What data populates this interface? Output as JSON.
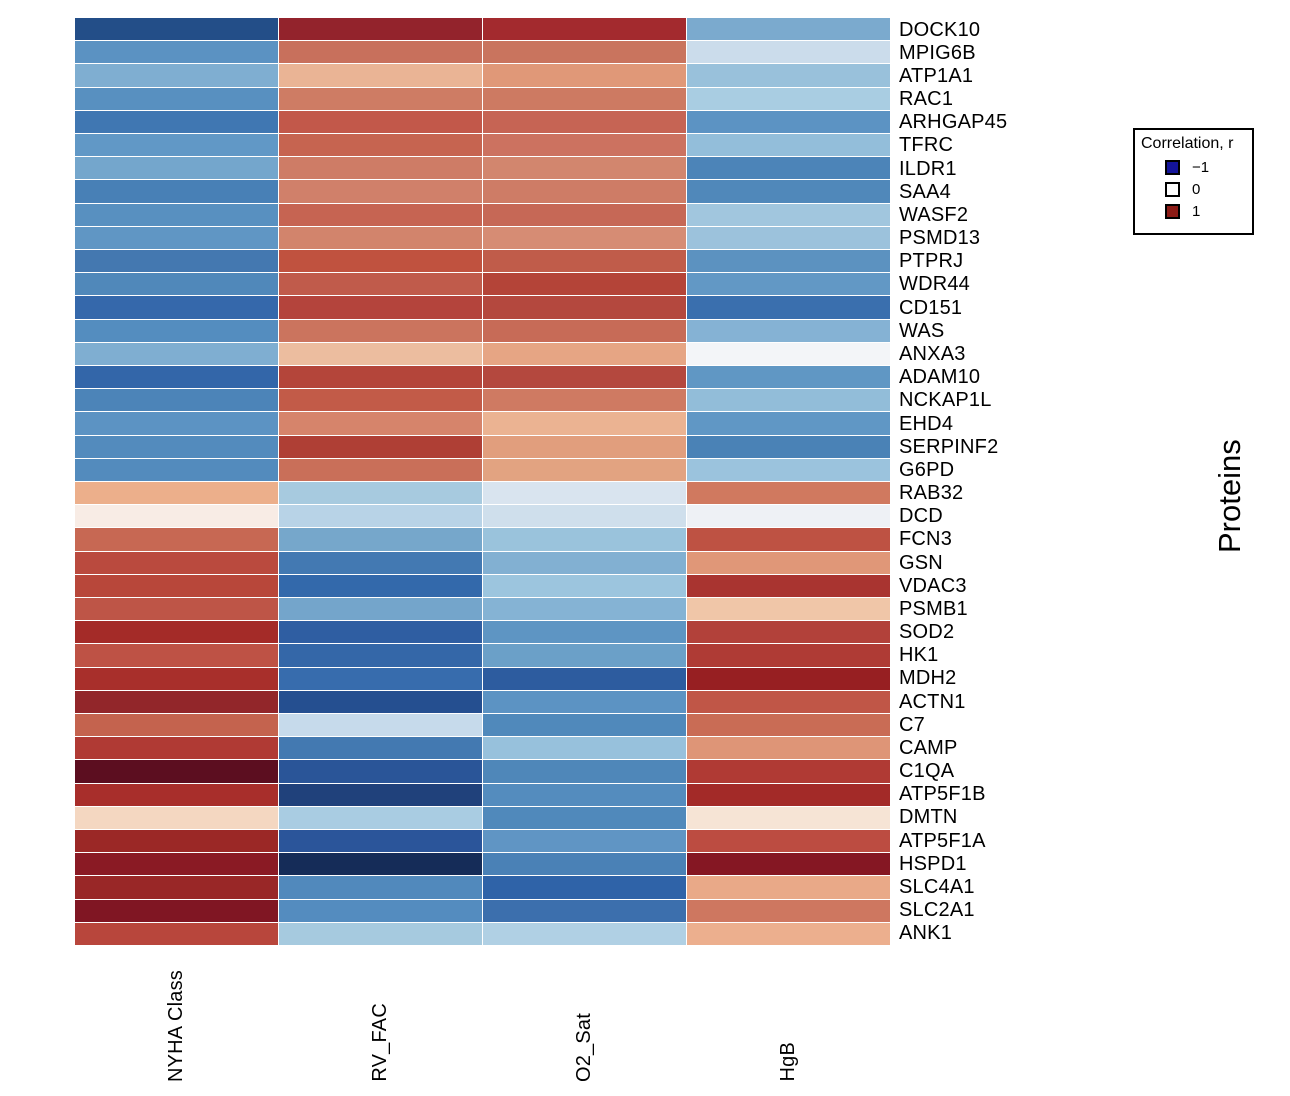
{
  "figure": {
    "background": "#FFFFFF",
    "ylab_right": "Proteins"
  },
  "legend": {
    "title": "Correlation, r",
    "entries": [
      {
        "label": "−1",
        "color": "#14149A"
      },
      {
        "label": "0",
        "color": "#FFFFFF"
      },
      {
        "label": "1",
        "color": "#8C1B16"
      }
    ]
  },
  "chart_data": {
    "type": "heatmap",
    "x_categories": [
      "NYHA Class",
      "RV_FAC",
      "O2_Sat",
      "HgB"
    ],
    "y_axis_label": "Proteins",
    "colorscale": {
      "min": -1,
      "mid": 0,
      "max": 1,
      "min_color": "#14149A",
      "mid_color": "#FFFFFF",
      "max_color": "#8C1B16"
    },
    "rows": [
      {
        "protein": "DOCK10",
        "r": [
          -0.8,
          0.85,
          0.8,
          -0.35
        ],
        "colors": [
          "#234E88",
          "#93232C",
          "#A32A2E",
          "#7BAACE"
        ]
      },
      {
        "protein": "MPIG6B",
        "r": [
          -0.5,
          0.5,
          0.48,
          -0.2
        ],
        "colors": [
          "#5B92C2",
          "#C8705C",
          "#C9745E",
          "#CBDCEB"
        ]
      },
      {
        "protein": "ATP1A1",
        "r": [
          -0.35,
          0.3,
          0.4,
          -0.3
        ],
        "colors": [
          "#7FAED1",
          "#EAB495",
          "#E09878",
          "#99C1DB"
        ]
      },
      {
        "protein": "RAC1",
        "r": [
          -0.52,
          0.45,
          0.45,
          -0.27
        ],
        "colors": [
          "#5890C0",
          "#CE7C64",
          "#CD7A62",
          "#A9CDE2"
        ]
      },
      {
        "protein": "ARHGAP45",
        "r": [
          -0.65,
          0.62,
          0.58,
          -0.5
        ],
        "colors": [
          "#4077B2",
          "#C2584A",
          "#C66454",
          "#5C93C3"
        ]
      },
      {
        "protein": "TFRC",
        "r": [
          -0.48,
          0.58,
          0.5,
          -0.32
        ],
        "colors": [
          "#6198C6",
          "#C66450",
          "#CC7260",
          "#93BEDA"
        ]
      },
      {
        "protein": "ILDR1",
        "r": [
          -0.4,
          0.45,
          0.42,
          -0.6
        ],
        "colors": [
          "#74A6CC",
          "#CE7C66",
          "#D2866E",
          "#4C84B8"
        ]
      },
      {
        "protein": "SAA4",
        "r": [
          -0.62,
          0.44,
          0.45,
          -0.58
        ],
        "colors": [
          "#4880B6",
          "#D0806A",
          "#CE7C66",
          "#5088BA"
        ]
      },
      {
        "protein": "WASF2",
        "r": [
          -0.52,
          0.58,
          0.56,
          -0.28
        ],
        "colors": [
          "#5890C0",
          "#C66452",
          "#C66856",
          "#A1C6DE"
        ]
      },
      {
        "protein": "PSMD13",
        "r": [
          -0.48,
          0.43,
          0.4,
          -0.3
        ],
        "colors": [
          "#6096C4",
          "#D2846C",
          "#D68C74",
          "#9CC2DC"
        ]
      },
      {
        "protein": "PTPRJ",
        "r": [
          -0.63,
          0.65,
          0.6,
          -0.5
        ],
        "colors": [
          "#4478B0",
          "#C0523F",
          "#C05C4A",
          "#5C92C0"
        ]
      },
      {
        "protein": "WDR44",
        "r": [
          -0.58,
          0.6,
          0.7,
          -0.47
        ],
        "colors": [
          "#5088BA",
          "#C05B4B",
          "#B44438",
          "#6298C5"
        ]
      },
      {
        "protein": "CD151",
        "r": [
          -0.72,
          0.72,
          0.7,
          -0.7
        ],
        "colors": [
          "#3568AB",
          "#B4443C",
          "#B4483E",
          "#3A6FAE"
        ]
      },
      {
        "protein": "WAS",
        "r": [
          -0.54,
          0.48,
          0.52,
          -0.37
        ],
        "colors": [
          "#548DBF",
          "#CB745E",
          "#C76B57",
          "#85B2D4"
        ]
      },
      {
        "protein": "ANXA3",
        "r": [
          -0.35,
          0.25,
          0.35,
          -0.02
        ],
        "colors": [
          "#7FAED1",
          "#ECBD9F",
          "#E6A584",
          "#F3F5F8"
        ]
      },
      {
        "protein": "ADAM10",
        "r": [
          -0.73,
          0.7,
          0.7,
          -0.48
        ],
        "colors": [
          "#3366A9",
          "#B4453A",
          "#B4483E",
          "#6097C4"
        ]
      },
      {
        "protein": "NCKAP1L",
        "r": [
          -0.6,
          0.62,
          0.45,
          -0.33
        ],
        "colors": [
          "#4C84B8",
          "#C25B48",
          "#CF7A62",
          "#92BDD9"
        ]
      },
      {
        "protein": "EHD4",
        "r": [
          -0.5,
          0.42,
          0.27,
          -0.48
        ],
        "colors": [
          "#5C93C3",
          "#D6846B",
          "#EBB392",
          "#6097C5"
        ]
      },
      {
        "protein": "SERPINF2",
        "r": [
          -0.55,
          0.68,
          0.35,
          -0.6
        ],
        "colors": [
          "#538BBD",
          "#AF3F35",
          "#E19E7D",
          "#4A82B6"
        ]
      },
      {
        "protein": "G6PD",
        "r": [
          -0.55,
          0.5,
          0.34,
          -0.3
        ],
        "colors": [
          "#538BBD",
          "#C96F59",
          "#E2A381",
          "#9BC3DD"
        ]
      },
      {
        "protein": "RAB32",
        "r": [
          0.25,
          -0.27,
          -0.12,
          0.46
        ],
        "colors": [
          "#ECAF8B",
          "#A7CADF",
          "#D9E4EF",
          "#D0795F"
        ]
      },
      {
        "protein": "DCD",
        "r": [
          0.05,
          -0.22,
          -0.15,
          -0.05
        ],
        "colors": [
          "#F8ECE5",
          "#B8D3E7",
          "#CFDFEC",
          "#EEF1F5"
        ]
      },
      {
        "protein": "FCN3",
        "r": [
          0.55,
          -0.4,
          -0.3,
          0.63
        ],
        "colors": [
          "#C76853",
          "#76A7CB",
          "#9AC3DC",
          "#BE5243"
        ]
      },
      {
        "protein": "GSN",
        "r": [
          0.65,
          -0.63,
          -0.36,
          0.37
        ],
        "colors": [
          "#BA4A3E",
          "#4379B2",
          "#82B0D2",
          "#E09778"
        ]
      },
      {
        "protein": "VDAC3",
        "r": [
          0.66,
          -0.72,
          -0.3,
          0.77
        ],
        "colors": [
          "#B8473A",
          "#3369AB",
          "#9CC5DE",
          "#A93430"
        ]
      },
      {
        "protein": "PSMB1",
        "r": [
          0.62,
          -0.41,
          -0.36,
          0.2
        ],
        "colors": [
          "#BE5547",
          "#74A5CB",
          "#85B3D4",
          "#F0C6A8"
        ]
      },
      {
        "protein": "SOD2",
        "r": [
          0.8,
          -0.78,
          -0.5,
          0.69
        ],
        "colors": [
          "#A42B28",
          "#2F5EA2",
          "#5E95C3",
          "#B2413A"
        ]
      },
      {
        "protein": "HK1",
        "r": [
          0.63,
          -0.72,
          -0.44,
          0.74
        ],
        "colors": [
          "#BE5245",
          "#3467A8",
          "#6BA0C8",
          "#AF3B35"
        ]
      },
      {
        "protein": "MDH2",
        "r": [
          0.78,
          -0.68,
          -0.8,
          0.87
        ],
        "colors": [
          "#A82F2B",
          "#376CAD",
          "#2D5C9F",
          "#971F22"
        ]
      },
      {
        "protein": "ACTN1",
        "r": [
          0.83,
          -0.82,
          -0.5,
          0.6
        ],
        "colors": [
          "#92262A",
          "#254F90",
          "#5C93C3",
          "#C05647"
        ]
      },
      {
        "protein": "C7",
        "r": [
          0.56,
          -0.18,
          -0.58,
          0.52
        ],
        "colors": [
          "#C4634E",
          "#C6DAEB",
          "#5089BB",
          "#C96C55"
        ]
      },
      {
        "protein": "CAMP",
        "r": [
          0.73,
          -0.63,
          -0.32,
          0.39
        ],
        "colors": [
          "#B03A34",
          "#4379B1",
          "#97C1DC",
          "#DE9577"
        ]
      },
      {
        "protein": "C1QA",
        "r": [
          0.98,
          -0.8,
          -0.58,
          0.73
        ],
        "colors": [
          "#5C0E20",
          "#2A5598",
          "#4F87B9",
          "#B03A34"
        ]
      },
      {
        "protein": "ATP5F1B",
        "r": [
          0.77,
          -0.88,
          -0.55,
          0.8
        ],
        "colors": [
          "#A82E2B",
          "#20417B",
          "#548CBE",
          "#A32A28"
        ]
      },
      {
        "protein": "DMTN",
        "r": [
          0.15,
          -0.26,
          -0.58,
          0.08
        ],
        "colors": [
          "#F4D7C1",
          "#A9CCE2",
          "#5089BB",
          "#F6E4D5"
        ]
      },
      {
        "protein": "ATP5F1A",
        "r": [
          0.81,
          -0.79,
          -0.48,
          0.65
        ],
        "colors": [
          "#9B2826",
          "#2B559A",
          "#6095C4",
          "#BC4C41"
        ]
      },
      {
        "protein": "HSPD1",
        "r": [
          0.88,
          -0.97,
          -0.6,
          0.9
        ],
        "colors": [
          "#8A1A24",
          "#152C58",
          "#4A81B6",
          "#851723"
        ]
      },
      {
        "protein": "SLC4A1",
        "r": [
          0.79,
          -0.56,
          -0.77,
          0.28
        ],
        "colors": [
          "#992727",
          "#5189BC",
          "#2F63A8",
          "#E9A988"
        ]
      },
      {
        "protein": "SLC2A1",
        "r": [
          0.91,
          -0.54,
          -0.67,
          0.48
        ],
        "colors": [
          "#801623",
          "#548CBF",
          "#3C6FAD",
          "#CE7760"
        ]
      },
      {
        "protein": "ANK1",
        "r": [
          0.66,
          -0.27,
          -0.25,
          0.24
        ],
        "colors": [
          "#B8463C",
          "#A6CADF",
          "#B0D0E4",
          "#ECAF8E"
        ]
      }
    ]
  }
}
